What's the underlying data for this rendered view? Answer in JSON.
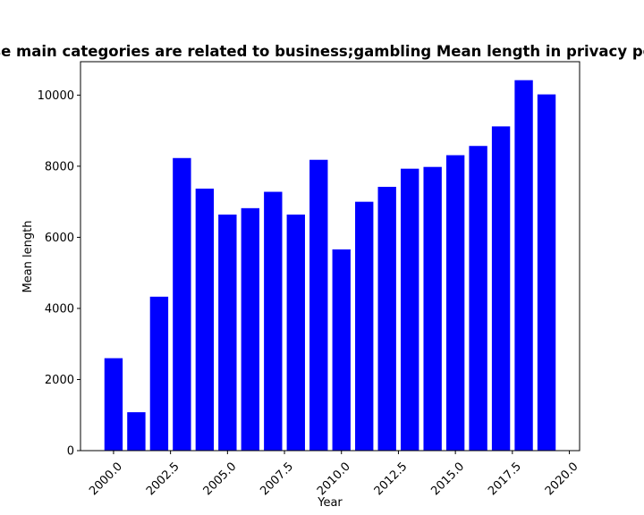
{
  "chart_data": {
    "type": "bar",
    "title": "Apps whose main categories are related to business;gambling Mean length in privacy policies by year",
    "xlabel": "Year",
    "ylabel": "Mean length",
    "x": [
      2000,
      2001,
      2002,
      2003,
      2004,
      2005,
      2006,
      2007,
      2008,
      2009,
      2010,
      2011,
      2012,
      2013,
      2014,
      2015,
      2016,
      2017,
      2018,
      2019
    ],
    "values": [
      2600,
      1080,
      4330,
      8230,
      7370,
      6640,
      6820,
      7280,
      6640,
      8180,
      5660,
      7000,
      7420,
      7930,
      7980,
      8310,
      8570,
      9120,
      10420,
      10020
    ],
    "xlim": [
      1998.55,
      2020.45
    ],
    "ylim": [
      0,
      10940
    ],
    "xticks": [
      2000.0,
      2002.5,
      2005.0,
      2007.5,
      2010.0,
      2012.5,
      2015.0,
      2017.5,
      2020.0
    ],
    "xtick_labels": [
      "2000.0",
      "2002.5",
      "2005.0",
      "2007.5",
      "2010.0",
      "2012.5",
      "2015.0",
      "2017.5",
      "2020.0"
    ],
    "yticks": [
      0,
      2000,
      4000,
      6000,
      8000,
      10000
    ],
    "ytick_labels": [
      "0",
      "2000",
      "4000",
      "6000",
      "8000",
      "10000"
    ],
    "bar_color": "#0000ff",
    "grid": false,
    "legend": "none"
  }
}
